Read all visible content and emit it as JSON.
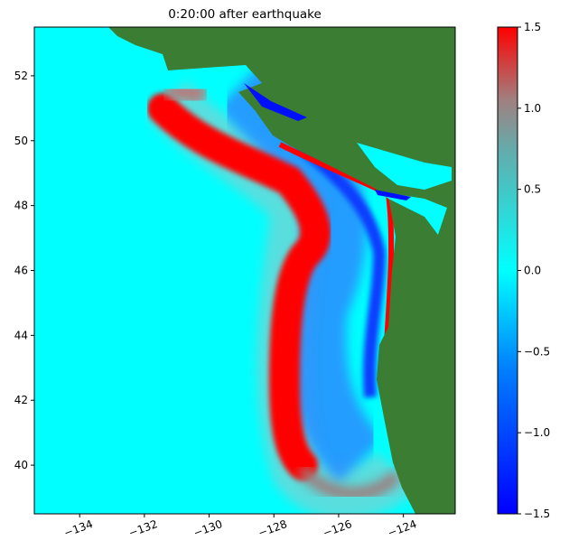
{
  "chart_data": {
    "type": "map",
    "title": "0:20:00 after earthquake",
    "xlim": [
      -135.4,
      -122.4
    ],
    "ylim": [
      38.5,
      53.5
    ],
    "xticks": [
      {
        "value": -134,
        "label": "−134"
      },
      {
        "value": -132,
        "label": "−132"
      },
      {
        "value": -130,
        "label": "−130"
      },
      {
        "value": -128,
        "label": "−128"
      },
      {
        "value": -126,
        "label": "−126"
      },
      {
        "value": -124,
        "label": "−124"
      }
    ],
    "yticks": [
      40,
      42,
      44,
      46,
      48,
      50,
      52
    ],
    "colorbar": {
      "lim": [
        -1.5,
        1.5
      ],
      "ticks": [
        {
          "value": -1.5,
          "label": "−1.5"
        },
        {
          "value": -1.0,
          "label": "−1.0"
        },
        {
          "value": -0.5,
          "label": "−0.5"
        },
        {
          "value": 0.0,
          "label": "0.0"
        },
        0.5,
        {
          "value": 1.0,
          "label": "1.0"
        },
        {
          "value": 1.5,
          "label": "1.5"
        }
      ]
    }
  }
}
